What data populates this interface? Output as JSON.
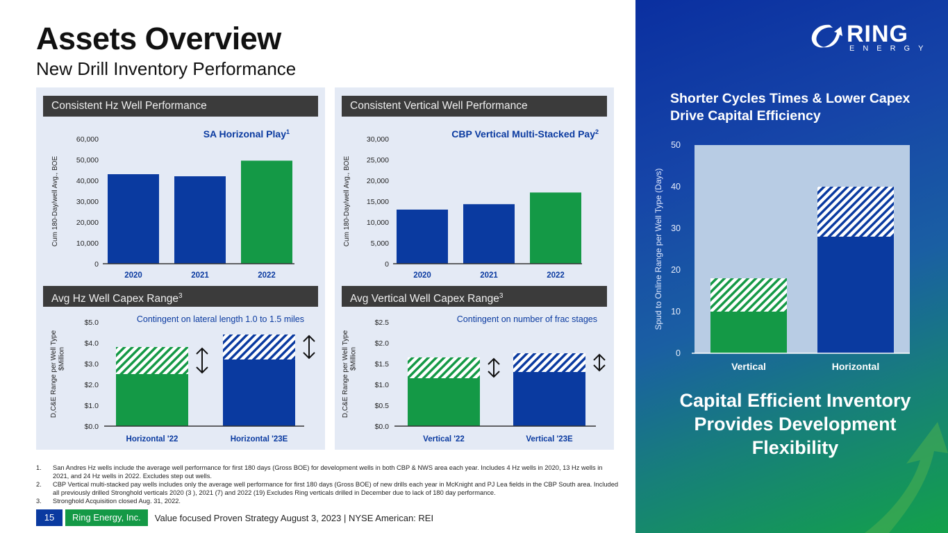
{
  "header": {
    "title": "Assets Overview",
    "subtitle": "New Drill Inventory Performance"
  },
  "colors": {
    "blue": "#0a3aa0",
    "green": "#149946",
    "panel_bg": "#e4eaf5",
    "header_bar": "#3b3b3b",
    "accent_text": "#0a3aa0"
  },
  "panels": {
    "hz_perf": {
      "header": "Consistent Hz Well Performance",
      "sup": ""
    },
    "vt_perf": {
      "header": "Consistent Vertical Well Performance",
      "sup": ""
    },
    "hz_capex": {
      "header": "Avg Hz Well Capex Range",
      "sup": "3"
    },
    "vt_capex": {
      "header": "Avg Vertical Well Capex Range",
      "sup": "3"
    }
  },
  "chart_data": [
    {
      "id": "hz_perf",
      "type": "bar",
      "title": "SA Horizonal Play",
      "title_sup": "1",
      "ylabel": "Cum 180-Day/well Avg., BOE",
      "xlabel": "",
      "categories": [
        "2020",
        "2021",
        "2022"
      ],
      "values": [
        43000,
        42000,
        49500
      ],
      "bar_colors": [
        "blue",
        "blue",
        "green"
      ],
      "ylim": [
        0,
        60000
      ],
      "yticks": [
        0,
        10000,
        20000,
        30000,
        40000,
        50000,
        60000
      ],
      "ytick_labels": [
        "0",
        "10,000",
        "20,000",
        "30,000",
        "40,000",
        "50,000",
        "60,000"
      ],
      "grid": false
    },
    {
      "id": "vt_perf",
      "type": "bar",
      "title": "CBP Vertical Multi-Stacked Pay",
      "title_sup": "2",
      "ylabel": "Cum 180-Day/well Avg., BOE",
      "xlabel": "",
      "categories": [
        "2020",
        "2021",
        "2022"
      ],
      "values": [
        13000,
        14300,
        17100
      ],
      "bar_colors": [
        "blue",
        "blue",
        "green"
      ],
      "ylim": [
        0,
        30000
      ],
      "yticks": [
        0,
        5000,
        10000,
        15000,
        20000,
        25000,
        30000
      ],
      "ytick_labels": [
        "0",
        "5,000",
        "10,000",
        "15,000",
        "20,000",
        "25,000",
        "30,000"
      ],
      "grid": false
    },
    {
      "id": "hz_capex",
      "type": "bar",
      "stacked_range": true,
      "title": "Contingent on lateral length 1.0 to 1.5 miles",
      "ylabel": "D,C&E  Range per Well Type $Million",
      "xlabel": "",
      "categories": [
        "Horizontal '22",
        "Horizontal '23E"
      ],
      "series": [
        {
          "name": "low",
          "values": [
            2.5,
            3.2
          ]
        },
        {
          "name": "high",
          "values": [
            3.8,
            4.4
          ]
        }
      ],
      "bar_colors": [
        "green",
        "blue"
      ],
      "ylim": [
        0,
        5
      ],
      "yticks": [
        0,
        1,
        2,
        3,
        4,
        5
      ],
      "ytick_labels": [
        "$0.0",
        "$1.0",
        "$2.0",
        "$3.0",
        "$4.0",
        "$5.0"
      ],
      "range_arrows": true,
      "grid": false
    },
    {
      "id": "vt_capex",
      "type": "bar",
      "stacked_range": true,
      "title": "Contingent on number of frac stages",
      "ylabel": "D,C&E  Range per Well Type $Million",
      "xlabel": "",
      "categories": [
        "Vertical '22",
        "Vertical '23E"
      ],
      "series": [
        {
          "name": "low",
          "values": [
            1.15,
            1.3
          ]
        },
        {
          "name": "high",
          "values": [
            1.65,
            1.75
          ]
        }
      ],
      "bar_colors": [
        "green",
        "blue"
      ],
      "ylim": [
        0,
        2.5
      ],
      "yticks": [
        0,
        0.5,
        1,
        1.5,
        2,
        2.5
      ],
      "ytick_labels": [
        "$0.0",
        "$0.5",
        "$1.0",
        "$1.5",
        "$2.0",
        "$2.5"
      ],
      "range_arrows": true,
      "grid": false
    },
    {
      "id": "cycle_days",
      "type": "bar",
      "stacked_range": true,
      "title": "Shorter Cycles Times & Lower Capex Drive Capital Efficiency",
      "ylabel": "Spud to Online Range per Well Type (Days)",
      "xlabel": "",
      "categories": [
        "Vertical",
        "Horizontal"
      ],
      "series": [
        {
          "name": "low",
          "values": [
            10,
            28
          ]
        },
        {
          "name": "high",
          "values": [
            18,
            40
          ]
        }
      ],
      "bar_colors": [
        "green",
        "blue"
      ],
      "ylim": [
        0,
        50
      ],
      "yticks": [
        0,
        10,
        20,
        30,
        40,
        50
      ],
      "ytick_labels": [
        "0",
        "10",
        "20",
        "30",
        "40",
        "50"
      ],
      "range_arrows": false,
      "grid": false
    }
  ],
  "right": {
    "logo_word": "RING",
    "logo_sub": "ENERGY",
    "heading": "Shorter Cycles Times & Lower Capex Drive Capital Efficiency",
    "callout": "Capital Efficient Inventory Provides Development Flexibility"
  },
  "footnotes": [
    {
      "num": "1.",
      "text": "San Andres Hz wells include the average well performance for first 180 days (Gross BOE) for development wells in both CBP & NWS area each year. Includes 4 Hz wells in 2020, 13 Hz wells in 2021, and 24 Hz wells in 2022.  Excludes step out wells."
    },
    {
      "num": "2.",
      "text": "CBP Vertical multi-stacked pay wells includes only the average well performance for first 180 days (Gross BOE) of new drills each year in McKnight and PJ Lea fields in the CBP South area. Included all previously drilled Stronghold verticals 2020 (3 ), 2021 (7) and 2022 (19) Excludes Ring verticals drilled in December due to lack of 180 day performance."
    },
    {
      "num": "3.",
      "text": "Stronghold Acquisition closed Aug. 31, 2022."
    }
  ],
  "footer": {
    "page": "15",
    "company": "Ring Energy, Inc.",
    "text": "Value focused Proven Strategy August 3, 2023 |  NYSE American: REI"
  }
}
